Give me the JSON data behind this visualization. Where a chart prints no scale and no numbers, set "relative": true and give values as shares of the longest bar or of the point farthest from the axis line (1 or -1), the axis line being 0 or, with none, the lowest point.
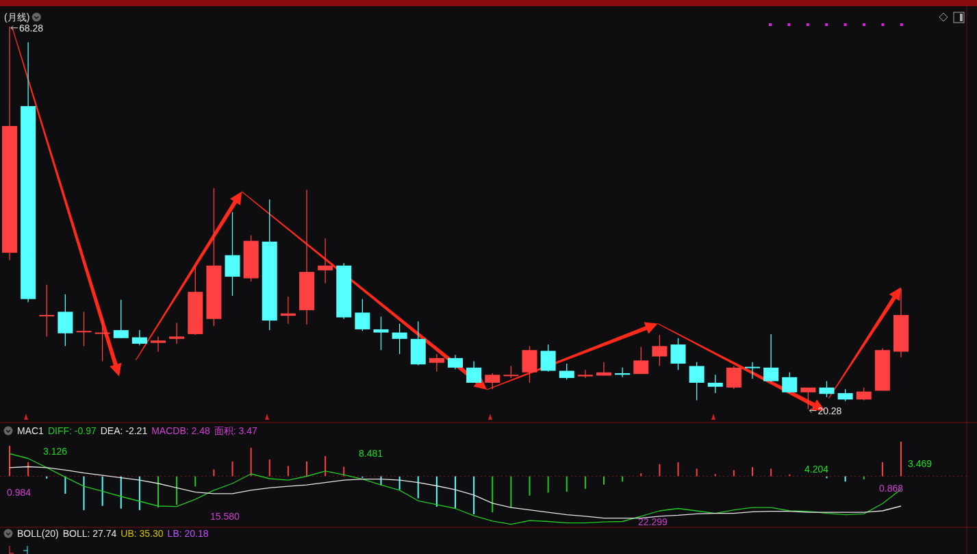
{
  "chart_data": [
    {
      "type": "candlestick",
      "title": "(月线)",
      "categories": [
        null,
        null,
        null,
        null,
        null,
        null,
        null,
        null,
        null,
        null,
        null,
        null,
        null,
        null,
        null,
        null,
        null,
        null,
        null,
        null,
        null,
        null,
        null,
        null,
        null,
        null,
        null,
        null,
        null,
        null,
        null,
        null,
        null,
        null,
        null,
        null,
        null,
        null,
        null,
        null,
        null,
        null,
        null,
        null,
        null,
        null,
        null,
        null,
        null
      ],
      "ohlc": [
        [
          39.9,
          68.28,
          39.0,
          55.8
        ],
        [
          58.3,
          66.3,
          33.7,
          34.1
        ],
        [
          32.0,
          35.9,
          29.4,
          32.1
        ],
        [
          32.5,
          34.7,
          28.2,
          29.8
        ],
        [
          30.0,
          32.5,
          28.2,
          30.1
        ],
        [
          29.8,
          31.5,
          26.3,
          29.9
        ],
        [
          30.2,
          34.0,
          29.2,
          29.2
        ],
        [
          29.3,
          30.2,
          28.3,
          28.5
        ],
        [
          28.6,
          29.4,
          27.5,
          28.9
        ],
        [
          29.1,
          31.1,
          28.5,
          29.4
        ],
        [
          29.7,
          38.3,
          29.6,
          35.0
        ],
        [
          31.6,
          48.0,
          30.7,
          38.3
        ],
        [
          39.6,
          45.0,
          34.5,
          36.9
        ],
        [
          36.7,
          42.1,
          36.3,
          41.4
        ],
        [
          41.3,
          46.6,
          30.2,
          31.4
        ],
        [
          32.0,
          34.4,
          31.0,
          32.3
        ],
        [
          32.7,
          47.8,
          30.9,
          37.5
        ],
        [
          37.7,
          41.7,
          36.1,
          38.3
        ],
        [
          38.3,
          38.6,
          31.6,
          31.8
        ],
        [
          32.4,
          34.1,
          30.1,
          30.3
        ],
        [
          30.3,
          31.9,
          27.7,
          29.9
        ],
        [
          29.9,
          31.0,
          27.2,
          29.1
        ],
        [
          29.1,
          31.3,
          25.8,
          25.9
        ],
        [
          26.1,
          27.2,
          25.0,
          26.7
        ],
        [
          26.7,
          27.1,
          25.3,
          25.5
        ],
        [
          25.5,
          26.3,
          23.6,
          23.6
        ],
        [
          23.6,
          24.8,
          22.8,
          24.6
        ],
        [
          24.6,
          25.7,
          24.2,
          24.6
        ],
        [
          24.9,
          28.2,
          23.6,
          27.7
        ],
        [
          27.6,
          28.4,
          25.0,
          25.1
        ],
        [
          25.1,
          26.0,
          24.0,
          24.2
        ],
        [
          24.4,
          25.2,
          24.2,
          24.6
        ],
        [
          24.5,
          26.2,
          24.5,
          24.9
        ],
        [
          24.8,
          25.5,
          24.3,
          24.6
        ],
        [
          24.7,
          28.1,
          24.7,
          26.4
        ],
        [
          26.9,
          29.6,
          25.7,
          28.2
        ],
        [
          28.4,
          29.2,
          25.2,
          26.0
        ],
        [
          25.7,
          26.2,
          21.4,
          23.6
        ],
        [
          23.6,
          24.6,
          22.3,
          23.1
        ],
        [
          23.0,
          25.7,
          22.8,
          25.5
        ],
        [
          25.6,
          26.2,
          24.1,
          25.5
        ],
        [
          25.5,
          29.7,
          23.7,
          23.8
        ],
        [
          24.3,
          24.9,
          22.3,
          22.4
        ],
        [
          22.4,
          23.0,
          20.28,
          23.0
        ],
        [
          23.0,
          23.8,
          21.8,
          22.2
        ],
        [
          22.3,
          22.8,
          21.3,
          21.5
        ],
        [
          21.5,
          23.0,
          21.4,
          22.5
        ],
        [
          22.6,
          27.9,
          22.6,
          27.7
        ],
        [
          27.5,
          35.4,
          26.8,
          32.1
        ]
      ],
      "colors": [
        "#ff4040",
        "#54ffff",
        "#ff4040",
        "#54ffff",
        "#ff4040",
        "#ff4040",
        "#54ffff",
        "#54ffff",
        "#ff4040",
        "#ff4040",
        "#ff4040",
        "#ff4040",
        "#54ffff",
        "#ff4040",
        "#54ffff",
        "#ff4040",
        "#ff4040",
        "#ff4040",
        "#54ffff",
        "#54ffff",
        "#54ffff",
        "#54ffff",
        "#54ffff",
        "#ff4040",
        "#54ffff",
        "#54ffff",
        "#ff4040",
        "#ff4040",
        "#ff4040",
        "#54ffff",
        "#54ffff",
        "#ff4040",
        "#ff4040",
        "#54ffff",
        "#ff4040",
        "#ff4040",
        "#54ffff",
        "#54ffff",
        "#54ffff",
        "#ff4040",
        "#54ffff",
        "#54ffff",
        "#54ffff",
        "#ff4040",
        "#54ffff",
        "#54ffff",
        "#ff4040",
        "#ff4040",
        "#ff4040"
      ],
      "annotations": [
        "68.28",
        "20.28"
      ]
    },
    {
      "type": "bar",
      "relative": true,
      "categories": [
        null,
        null,
        null,
        null,
        null,
        null,
        null,
        null,
        null,
        null,
        null,
        null,
        null,
        null,
        null,
        null,
        null,
        null,
        null,
        null,
        null,
        null,
        null,
        null,
        null,
        null,
        null,
        null,
        null,
        null,
        null,
        null,
        null,
        null,
        null,
        null,
        null,
        null,
        null,
        null,
        null,
        null,
        null,
        null,
        null,
        null,
        null,
        null,
        null
      ],
      "values": [
        0.8,
        0.37,
        -0.06,
        -0.46,
        -0.89,
        -0.78,
        -0.85,
        -0.89,
        -0.82,
        -0.75,
        -0.27,
        0.18,
        0.39,
        0.75,
        0.44,
        0.27,
        0.39,
        0.53,
        0.25,
        -0.04,
        -0.24,
        -0.35,
        -0.58,
        -0.8,
        -0.85,
        -1,
        -0.95,
        -0.82,
        -0.51,
        -0.43,
        -0.41,
        -0.33,
        -0.22,
        -0.14,
        0.08,
        0.32,
        0.37,
        0.2,
        0.06,
        0.16,
        0.24,
        0.2,
        0.05,
        0,
        -0.05,
        -0.14,
        -0.08,
        0.37,
        0.91
      ],
      "colors": [
        "#ff4040",
        "#ff4040",
        "#54ffff",
        "#54ffff",
        "#54ffff",
        "#54ffff",
        "#54ffff",
        "#54ffff",
        "#22cc22",
        "#22cc22",
        "#22cc22",
        "#ff4040",
        "#ff4040",
        "#ff4040",
        "#ff4040",
        "#ff4040",
        "#ff4040",
        "#ff4040",
        "#ff4040",
        "#54ffff",
        "#54ffff",
        "#54ffff",
        "#54ffff",
        "#54ffff",
        "#54ffff",
        "#54ffff",
        "#22cc22",
        "#22cc22",
        "#22cc22",
        "#22cc22",
        "#22cc22",
        "#22cc22",
        "#22cc22",
        "#22cc22",
        "#ff4040",
        "#ff4040",
        "#ff4040",
        "#ff4040",
        "#ff4040",
        "#ff4040",
        "#ff4040",
        "#ff4040",
        "#ff4040",
        "#ff4040",
        "#54ffff",
        "#54ffff",
        "#22cc22",
        "#ff4040",
        "#ff4040"
      ]
    },
    {
      "type": "line",
      "title": "MAC1",
      "relative": true,
      "ref_lines": [
        {
          "axis": "y",
          "value": 0,
          "color": "#7a1414",
          "line_style": "dotted"
        }
      ],
      "categories": [
        null,
        null,
        null,
        null,
        null,
        null,
        null,
        null,
        null,
        null,
        null,
        null,
        null,
        null,
        null,
        null,
        null,
        null,
        null,
        null,
        null,
        null,
        null,
        null,
        null,
        null,
        null,
        null,
        null,
        null,
        null,
        null,
        null,
        null,
        null,
        null,
        null,
        null,
        null,
        null,
        null,
        null,
        null,
        null,
        null,
        null,
        null,
        null,
        null
      ],
      "series": [
        {
          "name": "DIFF: -0.97",
          "color": "#22cc22",
          "values": [
            0.47,
            0.37,
            0.18,
            -0.02,
            -0.21,
            -0.31,
            -0.42,
            -0.52,
            -0.62,
            -0.63,
            -0.48,
            -0.29,
            -0.15,
            0.05,
            -0.05,
            -0.08,
            0.0,
            0.11,
            0.03,
            -0.06,
            -0.18,
            -0.29,
            -0.51,
            -0.59,
            -0.67,
            -0.82,
            -0.93,
            -1.0,
            -0.92,
            -0.94,
            -0.97,
            -0.97,
            -0.95,
            -0.94,
            -0.83,
            -0.72,
            -0.67,
            -0.72,
            -0.77,
            -0.7,
            -0.65,
            -0.65,
            -0.72,
            -0.73,
            -0.77,
            -0.8,
            -0.78,
            -0.57,
            -0.27
          ]
        },
        {
          "name": "DEA: -2.21",
          "color": "#e8e8e8",
          "values": [
            0.18,
            0.2,
            0.18,
            0.13,
            0.07,
            0.02,
            -0.03,
            -0.08,
            -0.15,
            -0.24,
            -0.33,
            -0.36,
            -0.36,
            -0.29,
            -0.24,
            -0.21,
            -0.18,
            -0.13,
            -0.08,
            -0.06,
            -0.06,
            -0.08,
            -0.13,
            -0.2,
            -0.28,
            -0.39,
            -0.56,
            -0.65,
            -0.7,
            -0.75,
            -0.8,
            -0.83,
            -0.87,
            -0.87,
            -0.87,
            -0.83,
            -0.81,
            -0.78,
            -0.77,
            -0.77,
            -0.74,
            -0.73,
            -0.73,
            -0.75,
            -0.75,
            -0.75,
            -0.75,
            -0.72,
            -0.62
          ]
        }
      ],
      "annotations": [
        "MACDB: 2.48",
        "面积: 3.47",
        "3.126",
        "8.481",
        "4.204",
        "3.469",
        "0.984",
        "15.580",
        "22.299",
        "0.868"
      ]
    },
    {
      "type": "other",
      "title": "BOLL(20)",
      "annotations": [
        "BOLL: 27.74",
        "UB: 35.30",
        "LB: 20.18"
      ]
    }
  ]
}
